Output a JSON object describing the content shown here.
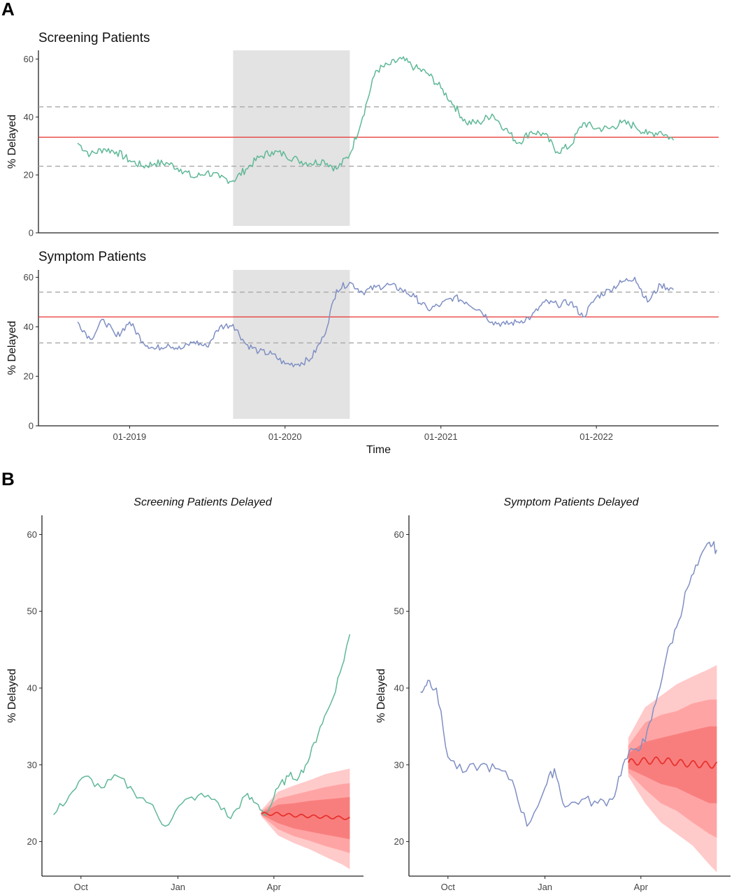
{
  "panels": {
    "a": "A",
    "b": "B"
  },
  "colors": {
    "screening": "#5fb896",
    "symptom": "#7f8fc4",
    "mean_line": "#e8322e",
    "limit_line": "#a8a8a8",
    "shade": "#e3e3e3",
    "forecast": "#e8322e",
    "band_outer": "#ffc4c4",
    "band_mid": "#ffa0a0",
    "band_inner": "#f77a7a"
  },
  "chart_data": [
    {
      "type": "line",
      "title": "Screening Patients",
      "xlabel": "",
      "ylabel": "% Delayed",
      "xlim": [
        "2018-06-01",
        "2022-10-15"
      ],
      "ylim": [
        0,
        63
      ],
      "yticks": [
        0,
        20,
        40,
        60
      ],
      "xticks": [],
      "grid": false,
      "shaded_region": [
        "2019-09-01",
        "2020-06-01"
      ],
      "mean": 33,
      "control_limits": [
        23,
        43.5
      ],
      "series": [
        {
          "x": [
            "2018-09-01",
            "2018-10-01",
            "2018-11-01",
            "2018-12-01",
            "2019-01-01",
            "2019-02-01",
            "2019-03-01",
            "2019-04-01",
            "2019-05-01",
            "2019-06-01",
            "2019-07-01",
            "2019-08-01",
            "2019-09-01",
            "2019-10-01",
            "2019-11-01",
            "2019-12-01",
            "2020-01-01",
            "2020-02-01",
            "2020-03-01",
            "2020-04-01",
            "2020-05-01",
            "2020-06-01",
            "2020-07-01",
            "2020-08-01",
            "2020-09-01",
            "2020-10-01",
            "2020-11-01",
            "2020-12-01",
            "2021-01-01",
            "2021-02-01",
            "2021-03-01",
            "2021-04-01",
            "2021-05-01",
            "2021-06-01",
            "2021-07-01",
            "2021-08-01",
            "2021-09-01",
            "2021-10-01",
            "2021-11-01",
            "2021-12-01",
            "2022-01-01",
            "2022-02-01",
            "2022-03-01",
            "2022-04-01",
            "2022-05-01",
            "2022-06-01",
            "2022-07-01"
          ],
          "values": [
            31,
            27,
            29,
            28,
            25,
            23,
            24,
            24,
            22,
            19,
            21,
            19,
            18,
            22,
            26,
            28,
            27,
            25,
            24,
            25,
            22,
            27,
            40,
            56,
            58,
            60,
            57,
            55,
            50,
            44,
            38,
            38,
            41,
            36,
            31,
            35,
            34,
            28,
            30,
            38,
            36,
            36,
            38,
            37,
            34,
            35,
            32
          ]
        }
      ]
    },
    {
      "type": "line",
      "title": "Symptom Patients",
      "xlabel": "Time",
      "ylabel": "% Delayed",
      "xlim": [
        "2018-06-01",
        "2022-10-15"
      ],
      "ylim": [
        0,
        63
      ],
      "yticks": [
        0,
        20,
        40,
        60
      ],
      "xticks": [
        "2019-01-01",
        "2020-01-01",
        "2021-01-01",
        "2022-01-01"
      ],
      "xtick_labels": [
        "01-2019",
        "01-2020",
        "01-2021",
        "01-2022"
      ],
      "grid": false,
      "shaded_region": [
        "2019-09-01",
        "2020-06-01"
      ],
      "mean": 44,
      "control_limits": [
        33.5,
        54
      ],
      "series": [
        {
          "x": [
            "2018-09-01",
            "2018-10-01",
            "2018-11-01",
            "2018-12-01",
            "2019-01-01",
            "2019-02-01",
            "2019-03-01",
            "2019-04-01",
            "2019-05-01",
            "2019-06-01",
            "2019-07-01",
            "2019-08-01",
            "2019-09-01",
            "2019-10-01",
            "2019-11-01",
            "2019-12-01",
            "2020-01-01",
            "2020-02-01",
            "2020-03-01",
            "2020-04-01",
            "2020-05-01",
            "2020-06-01",
            "2020-07-01",
            "2020-08-01",
            "2020-09-01",
            "2020-10-01",
            "2020-11-01",
            "2020-12-01",
            "2021-01-01",
            "2021-02-01",
            "2021-03-01",
            "2021-04-01",
            "2021-05-01",
            "2021-06-01",
            "2021-07-01",
            "2021-08-01",
            "2021-09-01",
            "2021-10-01",
            "2021-11-01",
            "2021-12-01",
            "2022-01-01",
            "2022-02-01",
            "2022-03-01",
            "2022-04-01",
            "2022-05-01",
            "2022-06-01",
            "2022-07-01"
          ],
          "values": [
            42,
            35,
            43,
            36,
            42,
            34,
            31,
            33,
            31,
            34,
            32,
            40,
            41,
            33,
            30,
            29,
            25,
            25,
            27,
            36,
            55,
            58,
            54,
            56,
            57,
            55,
            52,
            47,
            49,
            52,
            50,
            47,
            42,
            41,
            42,
            44,
            50,
            49,
            50,
            44,
            52,
            55,
            58,
            60,
            50,
            57,
            55
          ]
        }
      ]
    },
    {
      "type": "line",
      "title": "Screening Patients Delayed",
      "xlabel": "",
      "ylabel": "% Delayed",
      "xlim": [
        "2019-08-25",
        "2020-06-25"
      ],
      "ylim": [
        15.5,
        62.5
      ],
      "yticks": [
        20,
        30,
        40,
        50,
        60
      ],
      "xticks": [
        "2019-10-01",
        "2020-01-01",
        "2020-04-01"
      ],
      "xtick_labels": [
        "Oct",
        "Jan",
        "Apr"
      ],
      "grid": false,
      "series": [
        {
          "x": [
            "2019-09-05",
            "2019-09-20",
            "2019-10-05",
            "2019-10-20",
            "2019-11-05",
            "2019-11-20",
            "2019-12-05",
            "2019-12-20",
            "2020-01-05",
            "2020-01-20",
            "2020-02-05",
            "2020-02-20",
            "2020-03-05",
            "2020-03-15",
            "2020-03-25",
            "2020-04-05",
            "2020-04-15",
            "2020-04-25",
            "2020-05-05",
            "2020-05-15",
            "2020-05-25",
            "2020-06-05",
            "2020-06-12"
          ],
          "values": [
            23.5,
            26,
            28.5,
            27,
            28.5,
            26.5,
            25,
            22,
            25,
            26,
            25.5,
            23,
            26,
            25,
            23.5,
            27,
            28.5,
            28.5,
            31,
            35,
            38,
            43,
            47
          ]
        }
      ],
      "forecast": {
        "x": [
          "2020-03-20",
          "2020-04-05",
          "2020-04-20",
          "2020-05-05",
          "2020-05-20",
          "2020-06-05",
          "2020-06-12"
        ],
        "mean": [
          23.6,
          23.6,
          23.4,
          23.3,
          23.2,
          23.1,
          23.0
        ],
        "bands": [
          {
            "lower": [
              23.3,
              20.8,
              19.8,
              19.0,
              18.0,
              17.0,
              16.4
            ],
            "upper": [
              24.1,
              26.5,
              27.3,
              28.0,
              28.8,
              29.3,
              29.5
            ]
          },
          {
            "lower": [
              23.4,
              21.6,
              20.7,
              20.1,
              19.4,
              18.8,
              18.5
            ],
            "upper": [
              23.9,
              25.6,
              26.1,
              26.6,
              27.1,
              27.5,
              27.6
            ]
          },
          {
            "lower": [
              23.5,
              22.4,
              21.7,
              21.3,
              20.9,
              20.5,
              20.3
            ],
            "upper": [
              23.8,
              24.8,
              25.0,
              25.3,
              25.5,
              25.7,
              25.8
            ]
          }
        ]
      }
    },
    {
      "type": "line",
      "title": "Symptom Patients Delayed",
      "xlabel": "",
      "ylabel": "% Delayed",
      "xlim": [
        "2019-08-25",
        "2020-06-25"
      ],
      "ylim": [
        15.5,
        62.5
      ],
      "yticks": [
        20,
        30,
        40,
        50,
        60
      ],
      "xticks": [
        "2019-10-01",
        "2020-01-01",
        "2020-04-01"
      ],
      "xtick_labels": [
        "Oct",
        "Jan",
        "Apr"
      ],
      "grid": false,
      "series": [
        {
          "x": [
            "2019-09-05",
            "2019-09-12",
            "2019-09-20",
            "2019-10-01",
            "2019-10-15",
            "2019-11-01",
            "2019-11-15",
            "2019-12-01",
            "2019-12-15",
            "2020-01-01",
            "2020-01-10",
            "2020-01-20",
            "2020-02-05",
            "2020-02-20",
            "2020-03-05",
            "2020-03-15",
            "2020-03-25",
            "2020-04-05",
            "2020-04-15",
            "2020-04-25",
            "2020-05-05",
            "2020-05-15",
            "2020-05-25",
            "2020-06-05",
            "2020-06-12"
          ],
          "values": [
            39.5,
            41,
            40,
            31,
            29,
            30,
            29.5,
            28,
            22,
            27,
            29.5,
            24.5,
            25.5,
            25,
            25.5,
            30,
            32,
            33,
            38,
            44,
            48,
            53,
            56,
            59,
            58
          ]
        }
      ],
      "forecast": {
        "x": [
          "2020-03-20",
          "2020-04-05",
          "2020-04-20",
          "2020-05-05",
          "2020-05-20",
          "2020-06-05",
          "2020-06-12"
        ],
        "mean": [
          30.3,
          30.5,
          30.6,
          30.3,
          30.1,
          30.0,
          30.0
        ],
        "bands": [
          {
            "lower": [
              28.5,
              25.0,
              22.5,
              21.0,
              19.5,
              17.0,
              16.0
            ],
            "upper": [
              33.5,
              37.5,
              39.0,
              40.5,
              41.5,
              42.5,
              43.0
            ]
          },
          {
            "lower": [
              29.0,
              26.8,
              25.0,
              24.0,
              22.5,
              21.0,
              20.5
            ],
            "upper": [
              32.5,
              35.5,
              36.5,
              37.0,
              38.0,
              38.5,
              38.5
            ]
          },
          {
            "lower": [
              29.5,
              28.5,
              27.5,
              27.0,
              26.0,
              25.0,
              25.0
            ],
            "upper": [
              31.5,
              33.0,
              33.5,
              34.0,
              34.5,
              35.0,
              35.0
            ]
          }
        ]
      }
    }
  ]
}
